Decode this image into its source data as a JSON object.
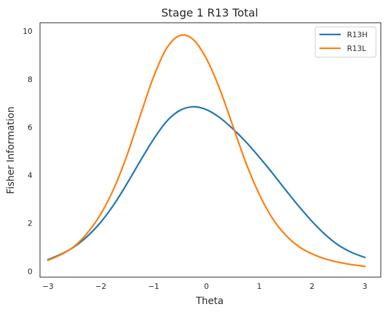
{
  "chart_data": {
    "type": "line",
    "title": "Stage 1 R13 Total",
    "xlabel": "Theta",
    "ylabel": "Fisher Information",
    "xlim": [
      -3.15,
      3.3
    ],
    "ylim": [
      -0.25,
      10.35
    ],
    "xticks": [
      -3,
      -2,
      -1,
      0,
      1,
      2,
      3
    ],
    "xtick_labels": [
      "−3",
      "−2",
      "−1",
      "0",
      "1",
      "2",
      "3"
    ],
    "yticks": [
      0,
      2,
      4,
      6,
      8,
      10
    ],
    "ytick_labels": [
      "0",
      "2",
      "4",
      "6",
      "8",
      "10"
    ],
    "grid": false,
    "legend_position": "top-right",
    "series": [
      {
        "name": "R13H",
        "color": "#1f77b4",
        "x": [
          -3.0,
          -2.75,
          -2.5,
          -2.25,
          -2.0,
          -1.75,
          -1.5,
          -1.25,
          -1.0,
          -0.75,
          -0.5,
          -0.25,
          0.0,
          0.25,
          0.5,
          0.75,
          1.0,
          1.25,
          1.5,
          1.75,
          2.0,
          2.25,
          2.5,
          2.75,
          3.0
        ],
        "y": [
          0.48,
          0.71,
          1.02,
          1.46,
          2.04,
          2.78,
          3.66,
          4.6,
          5.5,
          6.25,
          6.7,
          6.85,
          6.73,
          6.4,
          5.93,
          5.38,
          4.75,
          4.08,
          3.38,
          2.7,
          2.07,
          1.52,
          1.08,
          0.78,
          0.57
        ]
      },
      {
        "name": "R13L",
        "color": "#ff7f0e",
        "x": [
          -3.0,
          -2.75,
          -2.5,
          -2.25,
          -2.0,
          -1.75,
          -1.5,
          -1.25,
          -1.0,
          -0.75,
          -0.5,
          -0.25,
          0.0,
          0.25,
          0.5,
          0.75,
          1.0,
          1.25,
          1.5,
          1.75,
          2.0,
          2.25,
          2.5,
          2.75,
          3.0
        ],
        "y": [
          0.45,
          0.69,
          1.04,
          1.6,
          2.38,
          3.45,
          4.85,
          6.5,
          8.1,
          9.3,
          9.82,
          9.65,
          8.85,
          7.6,
          6.05,
          4.5,
          3.2,
          2.2,
          1.5,
          1.02,
          0.72,
          0.51,
          0.37,
          0.27,
          0.2
        ]
      }
    ]
  }
}
